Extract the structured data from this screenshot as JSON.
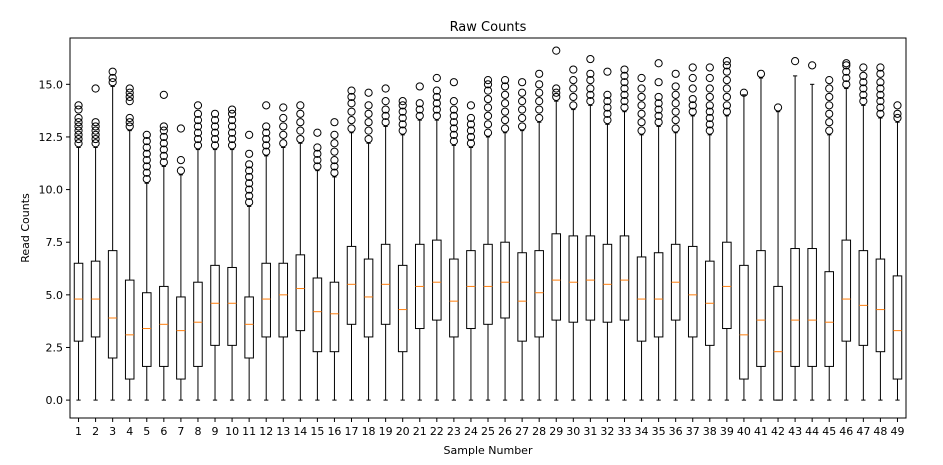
{
  "chart_data": {
    "type": "boxplot",
    "title": "Raw Counts",
    "xlabel": "Sample Number",
    "ylabel": "Read Counts",
    "ylim": [
      -0.85,
      17.2
    ],
    "yticks": [
      "0.0",
      "2.5",
      "5.0",
      "7.5",
      "10.0",
      "12.5",
      "15.0"
    ],
    "grid": false,
    "colors": {
      "box": "#000000",
      "median": "#ff7f0e",
      "flier": "#000000"
    },
    "categories": [
      "1",
      "2",
      "3",
      "4",
      "5",
      "6",
      "7",
      "8",
      "9",
      "10",
      "11",
      "12",
      "13",
      "14",
      "15",
      "16",
      "17",
      "18",
      "19",
      "20",
      "21",
      "22",
      "23",
      "24",
      "25",
      "26",
      "27",
      "28",
      "29",
      "30",
      "31",
      "32",
      "33",
      "34",
      "35",
      "36",
      "37",
      "38",
      "39",
      "40",
      "41",
      "42",
      "43",
      "44",
      "45",
      "46",
      "47",
      "48",
      "49"
    ],
    "series": [
      {
        "q1": 2.8,
        "median": 4.8,
        "q3": 6.5,
        "whisker_low": 0,
        "whisker_high": 12.0,
        "fliers": [
          12.2,
          12.4,
          12.6,
          12.8,
          13.0,
          13.2,
          13.4,
          13.8,
          14.0
        ]
      },
      {
        "q1": 3.0,
        "median": 4.8,
        "q3": 6.6,
        "whisker_low": 0,
        "whisker_high": 12.0,
        "fliers": [
          12.2,
          12.4,
          12.6,
          12.8,
          13.0,
          13.2,
          14.8
        ]
      },
      {
        "q1": 2.0,
        "median": 3.9,
        "q3": 7.1,
        "whisker_low": 0,
        "whisker_high": 14.9,
        "fliers": [
          15.1,
          15.3,
          15.6
        ]
      },
      {
        "q1": 1.0,
        "median": 3.1,
        "q3": 5.7,
        "whisker_low": 0,
        "whisker_high": 12.8,
        "fliers": [
          13.0,
          13.2,
          13.4,
          14.2,
          14.4,
          14.6,
          14.8
        ]
      },
      {
        "q1": 1.6,
        "median": 3.4,
        "q3": 5.1,
        "whisker_low": 0,
        "whisker_high": 10.3,
        "fliers": [
          10.5,
          10.8,
          11.1,
          11.4,
          11.7,
          12.0,
          12.3,
          12.6
        ]
      },
      {
        "q1": 1.6,
        "median": 3.6,
        "q3": 5.4,
        "whisker_low": 0,
        "whisker_high": 11.1,
        "fliers": [
          11.3,
          11.6,
          11.9,
          12.2,
          12.5,
          12.8,
          13.0,
          14.5
        ]
      },
      {
        "q1": 1.0,
        "median": 3.3,
        "q3": 4.9,
        "whisker_low": 0,
        "whisker_high": 10.7,
        "fliers": [
          10.9,
          11.4,
          12.9
        ]
      },
      {
        "q1": 1.6,
        "median": 3.7,
        "q3": 5.6,
        "whisker_low": 0,
        "whisker_high": 11.9,
        "fliers": [
          12.1,
          12.4,
          12.7,
          13.0,
          13.3,
          13.6,
          14.0
        ]
      },
      {
        "q1": 2.6,
        "median": 4.6,
        "q3": 6.4,
        "whisker_low": 0,
        "whisker_high": 11.9,
        "fliers": [
          12.1,
          12.4,
          12.7,
          13.0,
          13.3,
          13.6
        ]
      },
      {
        "q1": 2.6,
        "median": 4.6,
        "q3": 6.3,
        "whisker_low": 0,
        "whisker_high": 11.9,
        "fliers": [
          12.1,
          12.4,
          12.7,
          13.0,
          13.3,
          13.6,
          13.8
        ]
      },
      {
        "q1": 2.0,
        "median": 3.6,
        "q3": 4.9,
        "whisker_low": 0,
        "whisker_high": 9.2,
        "fliers": [
          9.4,
          9.7,
          10.0,
          10.3,
          10.6,
          10.9,
          11.2,
          11.7,
          12.6
        ]
      },
      {
        "q1": 3.0,
        "median": 4.8,
        "q3": 6.5,
        "whisker_low": 0,
        "whisker_high": 11.6,
        "fliers": [
          11.8,
          12.1,
          12.4,
          12.7,
          13.0,
          14.0
        ]
      },
      {
        "q1": 3.0,
        "median": 5.0,
        "q3": 6.5,
        "whisker_low": 0,
        "whisker_high": 12.0,
        "fliers": [
          12.2,
          12.6,
          13.0,
          13.4,
          13.9
        ]
      },
      {
        "q1": 3.3,
        "median": 5.3,
        "q3": 6.9,
        "whisker_low": 0,
        "whisker_high": 12.2,
        "fliers": [
          12.4,
          12.8,
          13.2,
          13.6,
          14.0
        ]
      },
      {
        "q1": 2.3,
        "median": 4.2,
        "q3": 5.8,
        "whisker_low": 0,
        "whisker_high": 10.9,
        "fliers": [
          11.1,
          11.4,
          11.7,
          12.0,
          12.7
        ]
      },
      {
        "q1": 2.3,
        "median": 4.1,
        "q3": 5.6,
        "whisker_low": 0,
        "whisker_high": 10.6,
        "fliers": [
          10.8,
          11.1,
          11.4,
          11.8,
          12.2,
          12.6,
          13.2
        ]
      },
      {
        "q1": 3.6,
        "median": 5.5,
        "q3": 7.3,
        "whisker_low": 0,
        "whisker_high": 12.7,
        "fliers": [
          12.9,
          13.3,
          13.7,
          14.1,
          14.4,
          14.7
        ]
      },
      {
        "q1": 3.0,
        "median": 4.9,
        "q3": 6.7,
        "whisker_low": 0,
        "whisker_high": 12.2,
        "fliers": [
          12.4,
          12.8,
          13.2,
          13.6,
          14.0,
          14.6
        ]
      },
      {
        "q1": 3.6,
        "median": 5.5,
        "q3": 7.4,
        "whisker_low": 0,
        "whisker_high": 13.0,
        "fliers": [
          13.2,
          13.5,
          13.8,
          14.2,
          14.8
        ]
      },
      {
        "q1": 2.3,
        "median": 4.3,
        "q3": 6.4,
        "whisker_low": 0,
        "whisker_high": 12.6,
        "fliers": [
          12.8,
          13.1,
          13.4,
          13.7,
          14.0,
          14.2
        ]
      },
      {
        "q1": 3.4,
        "median": 5.4,
        "q3": 7.4,
        "whisker_low": 0,
        "whisker_high": 13.3,
        "fliers": [
          13.5,
          13.8,
          14.1,
          14.9
        ]
      },
      {
        "q1": 3.8,
        "median": 5.6,
        "q3": 7.6,
        "whisker_low": 0,
        "whisker_high": 13.3,
        "fliers": [
          13.5,
          13.8,
          14.1,
          14.4,
          14.7,
          15.3
        ]
      },
      {
        "q1": 3.0,
        "median": 4.7,
        "q3": 6.7,
        "whisker_low": 0,
        "whisker_high": 12.1,
        "fliers": [
          12.3,
          12.6,
          12.9,
          13.2,
          13.5,
          13.8,
          14.2,
          15.1
        ]
      },
      {
        "q1": 3.4,
        "median": 5.4,
        "q3": 7.1,
        "whisker_low": 0,
        "whisker_high": 12.0,
        "fliers": [
          12.2,
          12.5,
          12.8,
          13.1,
          13.4,
          14.0
        ]
      },
      {
        "q1": 3.6,
        "median": 5.4,
        "q3": 7.4,
        "whisker_low": 0,
        "whisker_high": 12.5,
        "fliers": [
          12.7,
          13.1,
          13.5,
          13.9,
          14.3,
          14.7,
          15.0,
          15.2
        ]
      },
      {
        "q1": 3.9,
        "median": 5.6,
        "q3": 7.5,
        "whisker_low": 0,
        "whisker_high": 12.7,
        "fliers": [
          12.9,
          13.3,
          13.7,
          14.1,
          14.5,
          14.9,
          15.2
        ]
      },
      {
        "q1": 2.8,
        "median": 4.7,
        "q3": 7.0,
        "whisker_low": 0,
        "whisker_high": 12.8,
        "fliers": [
          13.0,
          13.4,
          13.8,
          14.2,
          14.6,
          15.1
        ]
      },
      {
        "q1": 3.0,
        "median": 5.1,
        "q3": 7.1,
        "whisker_low": 0,
        "whisker_high": 13.2,
        "fliers": [
          13.4,
          13.8,
          14.2,
          14.6,
          15.0,
          15.5
        ]
      },
      {
        "q1": 3.8,
        "median": 5.7,
        "q3": 7.9,
        "whisker_low": 0,
        "whisker_high": 14.2,
        "fliers": [
          14.4,
          14.6,
          14.8,
          16.6
        ]
      },
      {
        "q1": 3.7,
        "median": 5.6,
        "q3": 7.8,
        "whisker_low": 0,
        "whisker_high": 13.8,
        "fliers": [
          14.0,
          14.4,
          14.8,
          15.2,
          15.7
        ]
      },
      {
        "q1": 3.8,
        "median": 5.7,
        "q3": 7.8,
        "whisker_low": 0,
        "whisker_high": 14.0,
        "fliers": [
          14.2,
          14.5,
          14.8,
          15.2,
          15.5,
          16.2
        ]
      },
      {
        "q1": 3.7,
        "median": 5.5,
        "q3": 7.4,
        "whisker_low": 0,
        "whisker_high": 13.1,
        "fliers": [
          13.3,
          13.6,
          13.9,
          14.2,
          14.5,
          15.6
        ]
      },
      {
        "q1": 3.8,
        "median": 5.7,
        "q3": 7.8,
        "whisker_low": 0,
        "whisker_high": 13.7,
        "fliers": [
          13.9,
          14.2,
          14.5,
          14.8,
          15.1,
          15.4,
          15.7
        ]
      },
      {
        "q1": 2.8,
        "median": 4.8,
        "q3": 6.8,
        "whisker_low": 0,
        "whisker_high": 12.6,
        "fliers": [
          12.8,
          13.2,
          13.6,
          14.0,
          14.4,
          14.8,
          15.3
        ]
      },
      {
        "q1": 3.0,
        "median": 4.8,
        "q3": 7.0,
        "whisker_low": 0,
        "whisker_high": 13.0,
        "fliers": [
          13.2,
          13.5,
          13.8,
          14.1,
          14.4,
          15.1,
          16.0
        ]
      },
      {
        "q1": 3.8,
        "median": 5.6,
        "q3": 7.4,
        "whisker_low": 0,
        "whisker_high": 12.7,
        "fliers": [
          12.9,
          13.3,
          13.7,
          14.1,
          14.5,
          14.9,
          15.5
        ]
      },
      {
        "q1": 3.0,
        "median": 5.0,
        "q3": 7.3,
        "whisker_low": 0,
        "whisker_high": 13.5,
        "fliers": [
          13.7,
          14.0,
          14.3,
          14.8,
          15.3,
          15.8
        ]
      },
      {
        "q1": 2.6,
        "median": 4.6,
        "q3": 6.6,
        "whisker_low": 0,
        "whisker_high": 12.6,
        "fliers": [
          12.8,
          13.1,
          13.4,
          13.7,
          14.0,
          14.4,
          14.8,
          15.3,
          15.8
        ]
      },
      {
        "q1": 3.4,
        "median": 5.4,
        "q3": 7.5,
        "whisker_low": 0,
        "whisker_high": 13.5,
        "fliers": [
          13.7,
          14.0,
          14.4,
          14.8,
          15.2,
          15.6,
          15.9,
          16.1
        ]
      },
      {
        "q1": 1.0,
        "median": 3.1,
        "q3": 6.4,
        "whisker_low": 0,
        "whisker_high": 14.5,
        "fliers": [
          14.6
        ]
      },
      {
        "q1": 1.6,
        "median": 3.8,
        "q3": 7.1,
        "whisker_low": 0,
        "whisker_high": 15.3,
        "fliers": [
          15.5
        ]
      },
      {
        "q1": 0.0,
        "median": 2.3,
        "q3": 5.4,
        "whisker_low": 0,
        "whisker_high": 13.7,
        "fliers": [
          13.9
        ]
      },
      {
        "q1": 1.6,
        "median": 3.8,
        "q3": 7.2,
        "whisker_low": 0,
        "whisker_high": 15.4,
        "fliers": [
          16.1
        ]
      },
      {
        "q1": 1.6,
        "median": 3.8,
        "q3": 7.2,
        "whisker_low": 0,
        "whisker_high": 15.0,
        "fliers": [
          15.9
        ]
      },
      {
        "q1": 1.6,
        "median": 3.7,
        "q3": 6.1,
        "whisker_low": 0,
        "whisker_high": 12.6,
        "fliers": [
          12.8,
          13.2,
          13.6,
          14.0,
          14.4,
          14.8,
          15.2
        ]
      },
      {
        "q1": 2.8,
        "median": 4.8,
        "q3": 7.6,
        "whisker_low": 0,
        "whisker_high": 14.8,
        "fliers": [
          15.0,
          15.3,
          15.6,
          15.9,
          16.0
        ]
      },
      {
        "q1": 2.6,
        "median": 4.5,
        "q3": 7.1,
        "whisker_low": 0,
        "whisker_high": 14.0,
        "fliers": [
          14.2,
          14.5,
          14.8,
          15.1,
          15.4,
          15.8
        ]
      },
      {
        "q1": 2.3,
        "median": 4.3,
        "q3": 6.7,
        "whisker_low": 0,
        "whisker_high": 13.4,
        "fliers": [
          13.6,
          13.9,
          14.2,
          14.5,
          14.8,
          15.1,
          15.5,
          15.8
        ]
      },
      {
        "q1": 1.0,
        "median": 3.3,
        "q3": 5.9,
        "whisker_low": 0,
        "whisker_high": 13.2,
        "fliers": [
          13.4,
          13.6,
          14.0
        ]
      }
    ]
  }
}
